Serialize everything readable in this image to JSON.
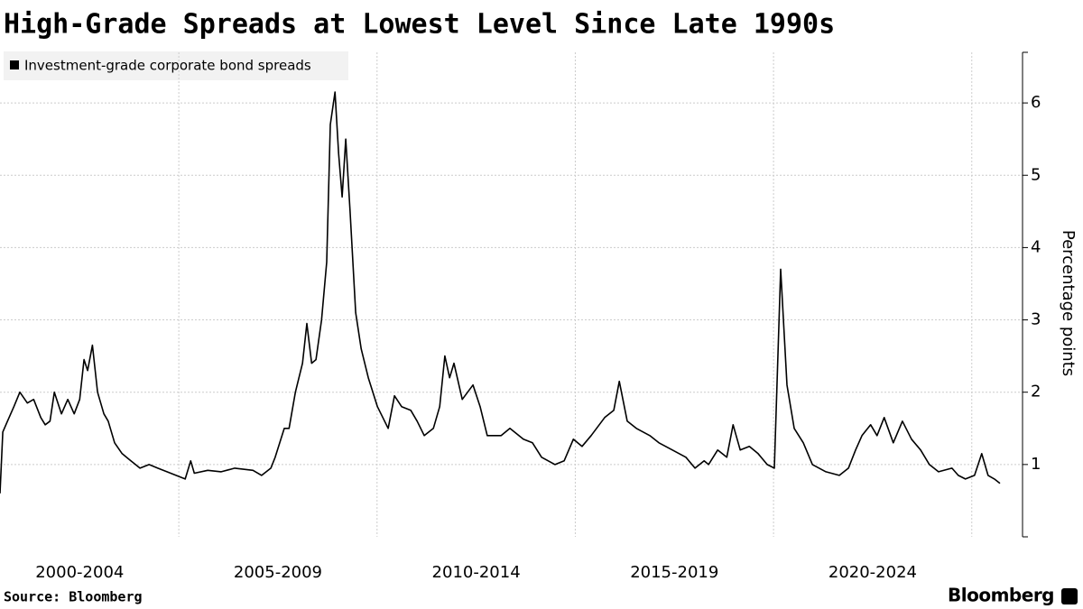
{
  "chart_data": {
    "type": "line",
    "title": "High-Grade Spreads at Lowest Level Since Late 1990s",
    "y_label": "Percentage points",
    "source": "Source: Bloomberg",
    "logo": "Bloomberg",
    "categories": [
      "2000-2004",
      "2005-2009",
      "2010-2014",
      "2015-2019",
      "2020-2024"
    ],
    "x": [
      2000.49,
      2000.56,
      2000.68,
      2000.84,
      2000.99,
      2001.18,
      2001.34,
      2001.52,
      2001.63,
      2001.75,
      2001.86,
      2002.04,
      2002.2,
      2002.36,
      2002.5,
      2002.61,
      2002.7,
      2002.82,
      2002.95,
      2003.11,
      2003.22,
      2003.38,
      2003.57,
      2003.79,
      2004.02,
      2004.25,
      2004.47,
      2004.7,
      2005.16,
      2005.3,
      2005.39,
      2005.73,
      2006.07,
      2006.41,
      2006.87,
      2007.09,
      2007.32,
      2007.43,
      2007.66,
      2007.78,
      2007.94,
      2008.12,
      2008.23,
      2008.35,
      2008.46,
      2008.6,
      2008.73,
      2008.82,
      2008.94,
      2009.03,
      2009.12,
      2009.21,
      2009.32,
      2009.46,
      2009.6,
      2009.78,
      2010.01,
      2010.28,
      2010.44,
      2010.62,
      2010.85,
      2011.01,
      2011.19,
      2011.42,
      2011.58,
      2011.71,
      2011.83,
      2011.94,
      2012.15,
      2012.42,
      2012.6,
      2012.78,
      2013.13,
      2013.35,
      2013.69,
      2013.92,
      2014.15,
      2014.49,
      2014.72,
      2014.95,
      2015.17,
      2015.4,
      2015.74,
      2015.97,
      2016.11,
      2016.31,
      2016.54,
      2016.88,
      2017.11,
      2017.45,
      2017.79,
      2018.02,
      2018.25,
      2018.36,
      2018.59,
      2018.82,
      2018.98,
      2019.16,
      2019.39,
      2019.61,
      2019.84,
      2020.02,
      2020.18,
      2020.34,
      2020.52,
      2020.75,
      2020.98,
      2021.32,
      2021.66,
      2021.89,
      2022.07,
      2022.23,
      2022.45,
      2022.61,
      2022.79,
      2023.02,
      2023.25,
      2023.48,
      2023.71,
      2023.93,
      2024.16,
      2024.5,
      2024.66,
      2024.84,
      2025.07,
      2025.25,
      2025.41,
      2025.57,
      2025.71
    ],
    "series": [
      {
        "name": "Investment-grade corporate bond spreads",
        "color": "#000000",
        "values": [
          0.6,
          1.45,
          1.6,
          1.8,
          2.0,
          1.85,
          1.9,
          1.65,
          1.55,
          1.6,
          2.0,
          1.7,
          1.9,
          1.7,
          1.9,
          2.45,
          2.3,
          2.65,
          2.0,
          1.7,
          1.6,
          1.3,
          1.15,
          1.05,
          0.95,
          1.0,
          0.95,
          0.9,
          0.8,
          1.05,
          0.88,
          0.92,
          0.9,
          0.95,
          0.92,
          0.85,
          0.95,
          1.1,
          1.5,
          1.5,
          2.0,
          2.4,
          2.95,
          2.4,
          2.45,
          3.0,
          3.8,
          5.7,
          6.15,
          5.3,
          4.7,
          5.5,
          4.5,
          3.1,
          2.6,
          2.2,
          1.8,
          1.5,
          1.95,
          1.8,
          1.75,
          1.6,
          1.4,
          1.5,
          1.8,
          2.5,
          2.2,
          2.4,
          1.9,
          2.1,
          1.8,
          1.4,
          1.4,
          1.5,
          1.35,
          1.3,
          1.1,
          1.0,
          1.05,
          1.35,
          1.25,
          1.4,
          1.65,
          1.75,
          2.15,
          1.6,
          1.5,
          1.4,
          1.3,
          1.2,
          1.1,
          0.95,
          1.05,
          1.0,
          1.2,
          1.1,
          1.55,
          1.2,
          1.25,
          1.15,
          1.0,
          0.95,
          3.7,
          2.1,
          1.5,
          1.3,
          1.0,
          0.9,
          0.85,
          0.95,
          1.2,
          1.4,
          1.55,
          1.4,
          1.65,
          1.3,
          1.6,
          1.35,
          1.2,
          1.0,
          0.9,
          0.95,
          0.85,
          0.8,
          0.85,
          1.15,
          0.85,
          0.8,
          0.74
        ]
      }
    ],
    "xlim": [
      2000.49,
      2026.28
    ],
    "xticks": [
      2005,
      2010,
      2015,
      2020,
      2025
    ],
    "ylim": [
      0,
      6.7
    ],
    "yticks": [
      1,
      2,
      3,
      4,
      5,
      6
    ],
    "grid": true
  }
}
